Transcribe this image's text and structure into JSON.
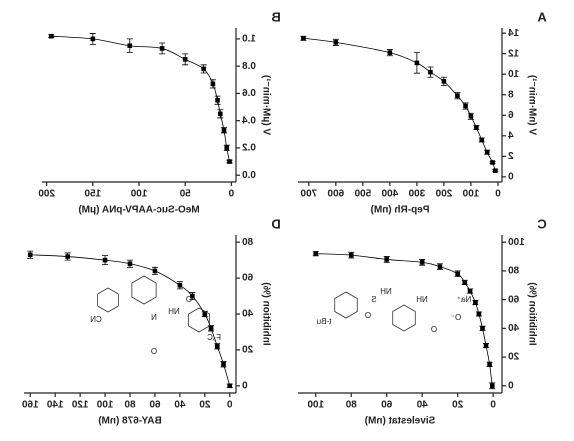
{
  "chart_data": [
    {
      "type": "scatter",
      "panel": "A",
      "x_label": "Pep-Rh (nM)",
      "y_label": "V (nM·min⁻¹)",
      "x": [
        10,
        20,
        40,
        60,
        80,
        100,
        120,
        150,
        200,
        250,
        300,
        400,
        600,
        720
      ],
      "values": [
        0.6,
        1.4,
        2.4,
        3.6,
        4.8,
        5.9,
        6.9,
        7.9,
        9.3,
        10.2,
        11.1,
        12.1,
        13.1,
        13.5
      ],
      "errors": [
        0.1,
        0.1,
        0.2,
        0.2,
        0.2,
        0.3,
        0.3,
        0.3,
        0.4,
        0.5,
        1.0,
        0.3,
        0.3,
        0.2
      ],
      "xlim": [
        -15,
        740
      ],
      "ylim": [
        -0.5,
        14.5
      ],
      "xticks": [
        0,
        100,
        200,
        300,
        400,
        500,
        600,
        700
      ],
      "yticks": [
        0,
        2,
        4,
        6,
        8,
        10,
        12,
        14
      ],
      "line": true,
      "color": "#000000"
    },
    {
      "type": "scatter",
      "panel": "B",
      "x_label": "MeO-Suc-AAPV-pNA (μM)",
      "y_label": "V (μM·min⁻¹)",
      "x": [
        2,
        5,
        8,
        12,
        15,
        20,
        30,
        50,
        75,
        110,
        150,
        195
      ],
      "values": [
        0.1,
        0.2,
        0.33,
        0.45,
        0.55,
        0.67,
        0.78,
        0.85,
        0.93,
        0.95,
        1.0,
        1.02
      ],
      "errors": [
        0.01,
        0.02,
        0.02,
        0.03,
        0.03,
        0.03,
        0.03,
        0.04,
        0.04,
        0.05,
        0.04,
        0.01
      ],
      "xlim": [
        -5,
        205
      ],
      "ylim": [
        -0.05,
        1.08
      ],
      "xticks": [
        0,
        50,
        100,
        150,
        200
      ],
      "yticks": [
        {
          "value": 0,
          "label": "0.0"
        },
        0.2,
        0.4,
        0.6,
        0.8,
        {
          "value": 1,
          "label": "1.0"
        }
      ],
      "line": true,
      "color": "#000000"
    },
    {
      "type": "scatter",
      "panel": "C",
      "x_label": "Sivelestat (nM)",
      "y_label": "Inhibition (%)",
      "x": [
        0.5,
        2,
        4,
        6,
        8,
        10,
        13,
        16,
        20,
        30,
        40,
        60,
        80,
        100
      ],
      "values": [
        0,
        15,
        28,
        40,
        50,
        58,
        66,
        72,
        78,
        83,
        86,
        88,
        91,
        92
      ],
      "errors": [
        2,
        1.5,
        1.5,
        1.5,
        1.5,
        1.5,
        1.5,
        1.5,
        2,
        2,
        2,
        2,
        2,
        1.5
      ],
      "xlim": [
        -5,
        110
      ],
      "ylim": [
        -5,
        105
      ],
      "xticks": [
        0,
        20,
        40,
        60,
        80,
        100
      ],
      "yticks": [
        0,
        20,
        40,
        60,
        80,
        100
      ],
      "line": true,
      "color": "#000000",
      "annotations": [
        "Na⁺",
        "O⁻",
        "O",
        "NH",
        "NH",
        "S",
        "O",
        "t-Bu"
      ]
    },
    {
      "type": "scatter",
      "panel": "D",
      "x_label": "BAY-678 (nM)",
      "y_label": "Inhibition (%)",
      "x": [
        0,
        5,
        10,
        15,
        20,
        30,
        40,
        60,
        80,
        100,
        130,
        160
      ],
      "values": [
        0,
        12,
        22,
        32,
        40,
        50,
        56,
        64,
        68,
        70,
        72,
        73
      ],
      "errors": [
        1,
        1.5,
        1.5,
        1.5,
        1.5,
        2,
        2,
        2,
        2,
        2.5,
        2,
        2
      ],
      "xlim": [
        -5,
        165
      ],
      "ylim": [
        -4,
        84
      ],
      "xticks": [
        0,
        20,
        40,
        60,
        80,
        100,
        120,
        140,
        160
      ],
      "yticks": [
        0,
        20,
        40,
        60,
        80
      ],
      "line": true,
      "color": "#000000",
      "annotations": [
        "NH",
        "O",
        "N",
        "CN",
        "F₃C",
        "O"
      ]
    }
  ]
}
